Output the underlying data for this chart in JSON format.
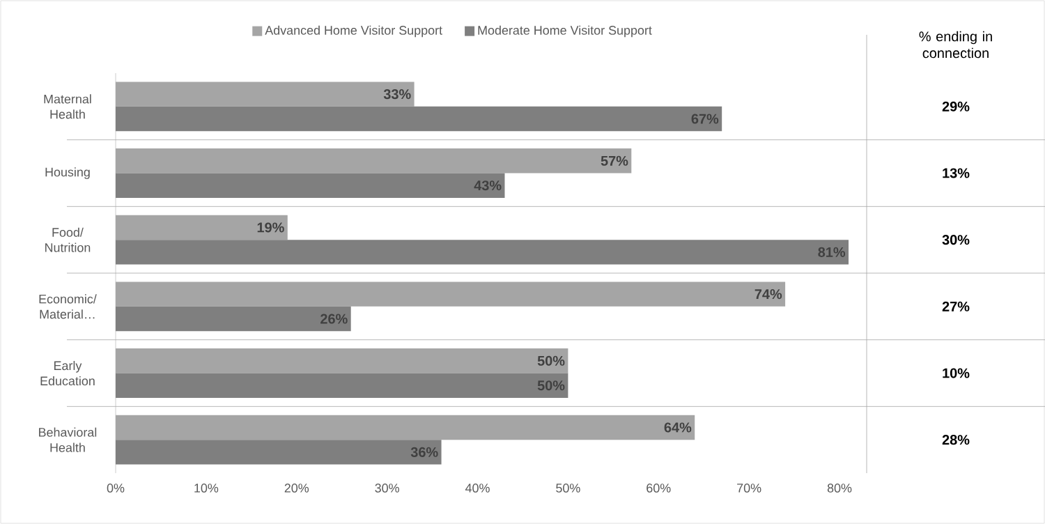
{
  "chart_data": {
    "type": "bar",
    "orientation": "horizontal",
    "legend": "top",
    "categories": [
      "Maternal Health",
      "Housing",
      "Food/ Nutrition",
      "Economic/ Material…",
      "Early Education",
      "Behavioral Health"
    ],
    "series": [
      {
        "name": "Advanced Home Visitor Support",
        "color": "#a5a5a5",
        "values": [
          33,
          57,
          19,
          74,
          50,
          64
        ],
        "value_labels": [
          "33%",
          "57%",
          "19%",
          "74%",
          "50%",
          "64%"
        ]
      },
      {
        "name": "Moderate Home Visitor Support",
        "color": "#7f7f7f",
        "values": [
          67,
          43,
          81,
          26,
          50,
          36
        ],
        "value_labels": [
          "67%",
          "43%",
          "81%",
          "26%",
          "50%",
          "36%"
        ]
      }
    ],
    "xlim": [
      0,
      83
    ],
    "xticks": [
      {
        "value": 0,
        "label": "0%"
      },
      {
        "value": 10,
        "label": "10%"
      },
      {
        "value": 20,
        "label": "20%"
      },
      {
        "value": 30,
        "label": "30%"
      },
      {
        "value": 40,
        "label": "40%"
      },
      {
        "value": 50,
        "label": "50%"
      },
      {
        "value": 60,
        "label": "60%"
      },
      {
        "value": 70,
        "label": "70%"
      },
      {
        "value": 80,
        "label": "80%"
      }
    ],
    "annotations": [
      "% ending in connection",
      "29%",
      "13%",
      "30%",
      "27%",
      "10%",
      "28%"
    ]
  }
}
